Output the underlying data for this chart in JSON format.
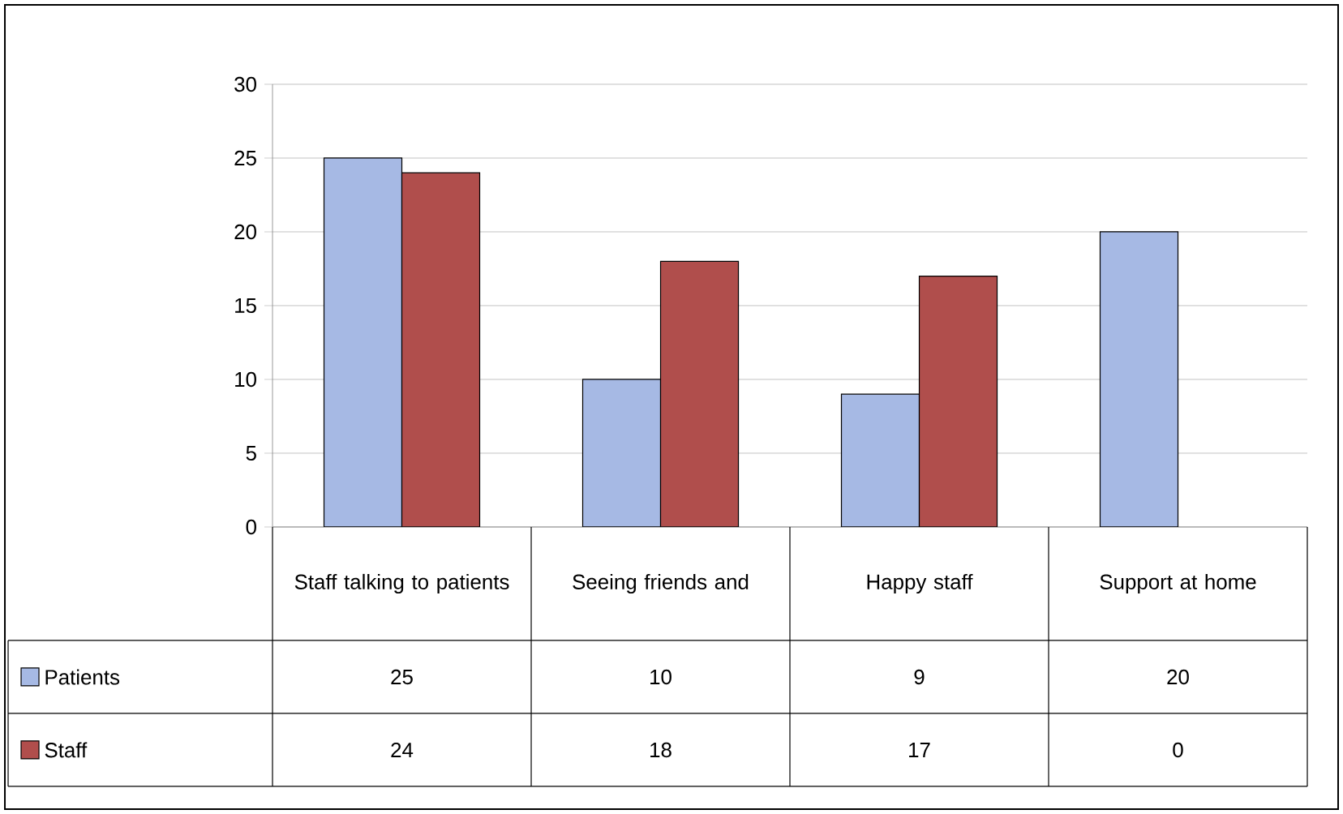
{
  "chart_data": {
    "type": "bar",
    "categories": [
      "Staff talking to patients",
      "Seeing friends and",
      "Happy staff",
      "Support at home"
    ],
    "series": [
      {
        "name": "Patients",
        "color": "#a6b9e4",
        "values": [
          25,
          10,
          9,
          20
        ]
      },
      {
        "name": "Staff",
        "color": "#b04e4c",
        "values": [
          24,
          18,
          17,
          0
        ]
      }
    ],
    "ylim": [
      0,
      30
    ],
    "yticks": [
      0,
      5,
      10,
      15,
      20,
      25,
      30
    ],
    "grid": "y",
    "data_labels": true,
    "legend": "bottom"
  }
}
